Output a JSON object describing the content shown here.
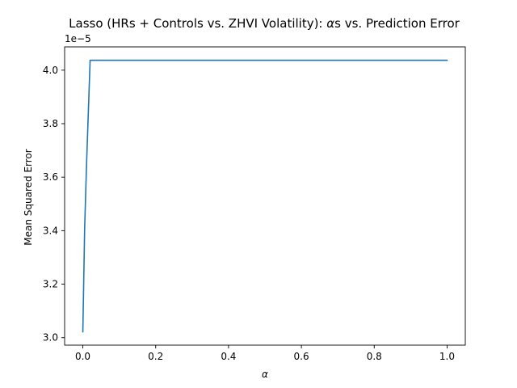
{
  "chart_data": {
    "type": "line",
    "title": "Lasso (HRs + Controls vs. ZHVI Volatility): αs vs. Prediction Error",
    "title_prefix": "Lasso (HRs + Controls vs. ZHVI Volatility): ",
    "title_alpha": "α",
    "title_suffix": "s vs. Prediction Error",
    "xlabel": "α",
    "ylabel": "Mean Squared Error",
    "y_offset_label": "1e−5",
    "xlim": [
      -0.05,
      1.05
    ],
    "ylim": [
      2.972,
      4.087
    ],
    "x_ticks": [
      0.0,
      0.2,
      0.4,
      0.6,
      0.8,
      1.0
    ],
    "x_tick_labels": [
      "0.0",
      "0.2",
      "0.4",
      "0.6",
      "0.8",
      "1.0"
    ],
    "y_ticks": [
      3.0,
      3.2,
      3.4,
      3.6,
      3.8,
      4.0
    ],
    "y_tick_labels": [
      "3.0",
      "3.2",
      "3.4",
      "3.6",
      "3.8",
      "4.0"
    ],
    "grid": false,
    "series": [
      {
        "name": "MSE",
        "color": "#1f77b4",
        "x": [
          0.0,
          0.005,
          0.01,
          0.02,
          0.1,
          0.2,
          0.3,
          0.4,
          0.5,
          0.6,
          0.7,
          0.8,
          0.9,
          1.0
        ],
        "y": [
          3.022,
          3.41,
          3.64,
          4.037,
          4.037,
          4.037,
          4.037,
          4.037,
          4.037,
          4.037,
          4.037,
          4.037,
          4.037,
          4.037
        ]
      }
    ]
  }
}
